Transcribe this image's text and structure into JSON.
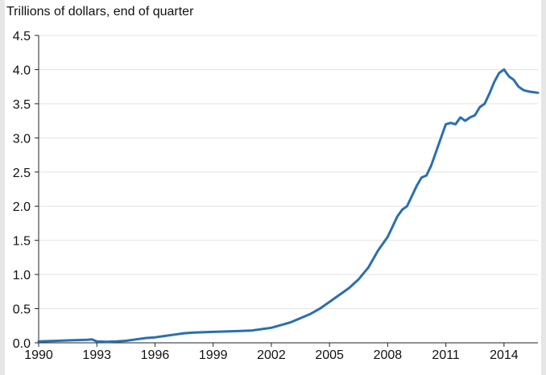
{
  "chart_data": {
    "type": "line",
    "title": "",
    "ylabel": "Trillions of dollars, end of quarter",
    "xlabel": "",
    "xlim": [
      1990,
      2015.75
    ],
    "ylim": [
      0,
      4.5
    ],
    "xticks": [
      1990,
      1993,
      1996,
      1999,
      2002,
      2005,
      2008,
      2011,
      2014
    ],
    "xtick_labels": [
      "1990",
      "1993",
      "1996",
      "1999",
      "2002",
      "2005",
      "2008",
      "2011",
      "2014"
    ],
    "yticks": [
      0,
      0.5,
      1,
      1.5,
      2,
      2.5,
      3,
      3.5,
      4,
      4.5
    ],
    "ytick_labels": [
      "0.0",
      "0.5",
      "1.0",
      "1.5",
      "2.0",
      "2.5",
      "3.0",
      "3.5",
      "4.0",
      "4.5"
    ],
    "grid": "horizontal",
    "series": [
      {
        "color": "#2a6fb0",
        "x": [
          1990,
          1990.5,
          1991,
          1991.5,
          1992,
          1992.5,
          1992.75,
          1993,
          1993.5,
          1994,
          1994.5,
          1995,
          1995.5,
          1996,
          1996.5,
          1997,
          1997.5,
          1998,
          1999,
          2000,
          2001,
          2001.5,
          2002,
          2002.5,
          2003,
          2003.5,
          2004,
          2004.5,
          2005,
          2005.5,
          2006,
          2006.5,
          2007,
          2007.5,
          2008,
          2008.25,
          2008.5,
          2008.75,
          2009,
          2009.25,
          2009.5,
          2009.75,
          2010,
          2010.25,
          2010.5,
          2010.75,
          2011,
          2011.25,
          2011.5,
          2011.75,
          2012,
          2012.25,
          2012.5,
          2012.75,
          2013,
          2013.25,
          2013.5,
          2013.75,
          2014,
          2014.25,
          2014.5,
          2014.75,
          2015,
          2015.25,
          2015.5,
          2015.75
        ],
        "y": [
          0.02,
          0.025,
          0.03,
          0.035,
          0.04,
          0.045,
          0.05,
          0.02,
          0.015,
          0.02,
          0.03,
          0.05,
          0.07,
          0.08,
          0.1,
          0.12,
          0.14,
          0.15,
          0.16,
          0.17,
          0.18,
          0.2,
          0.22,
          0.26,
          0.3,
          0.36,
          0.42,
          0.5,
          0.6,
          0.7,
          0.8,
          0.93,
          1.1,
          1.35,
          1.55,
          1.7,
          1.85,
          1.95,
          2.0,
          2.15,
          2.3,
          2.42,
          2.45,
          2.6,
          2.8,
          3.0,
          3.2,
          3.22,
          3.2,
          3.3,
          3.25,
          3.3,
          3.33,
          3.45,
          3.5,
          3.65,
          3.82,
          3.95,
          4.0,
          3.9,
          3.85,
          3.75,
          3.7,
          3.68,
          3.67,
          3.66
        ]
      }
    ]
  }
}
